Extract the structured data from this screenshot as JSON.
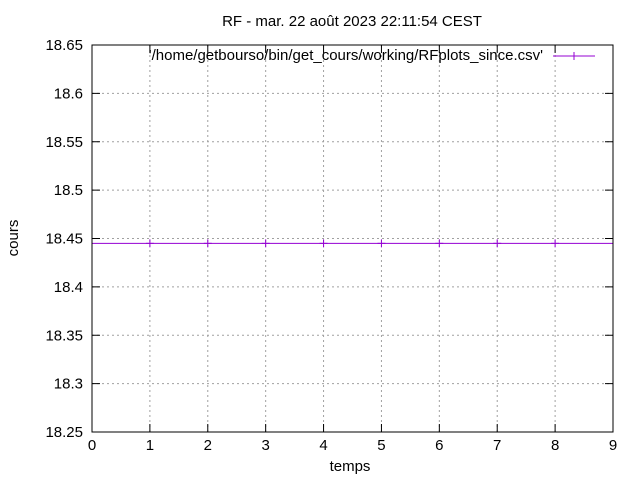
{
  "chart_data": {
    "type": "line",
    "title": "RF - mar. 22 août 2023 22:11:54 CEST",
    "xlabel": "temps",
    "ylabel": "cours",
    "xlim": [
      0,
      9
    ],
    "ylim": [
      18.25,
      18.65
    ],
    "x_ticks": [
      0,
      1,
      2,
      3,
      4,
      5,
      6,
      7,
      8,
      9
    ],
    "y_ticks": [
      18.25,
      18.3,
      18.35,
      18.4,
      18.45,
      18.5,
      18.55,
      18.6,
      18.65
    ],
    "y_tick_labels": [
      "18.25",
      "18.3",
      "18.35",
      "18.4",
      "18.45",
      "18.5",
      "18.55",
      "18.6",
      "18.65"
    ],
    "grid": true,
    "legend_position": "top-right",
    "series": [
      {
        "name": "'/home/getbourso/bin/get_cours/working/RFplots_since.csv'",
        "color": "#9400d3",
        "marker": "plus",
        "line_extends_full_width": true,
        "x": [
          1,
          2,
          3,
          4,
          5,
          6,
          7,
          8
        ],
        "values": [
          18.445,
          18.445,
          18.445,
          18.445,
          18.445,
          18.445,
          18.445,
          18.445
        ]
      }
    ]
  }
}
